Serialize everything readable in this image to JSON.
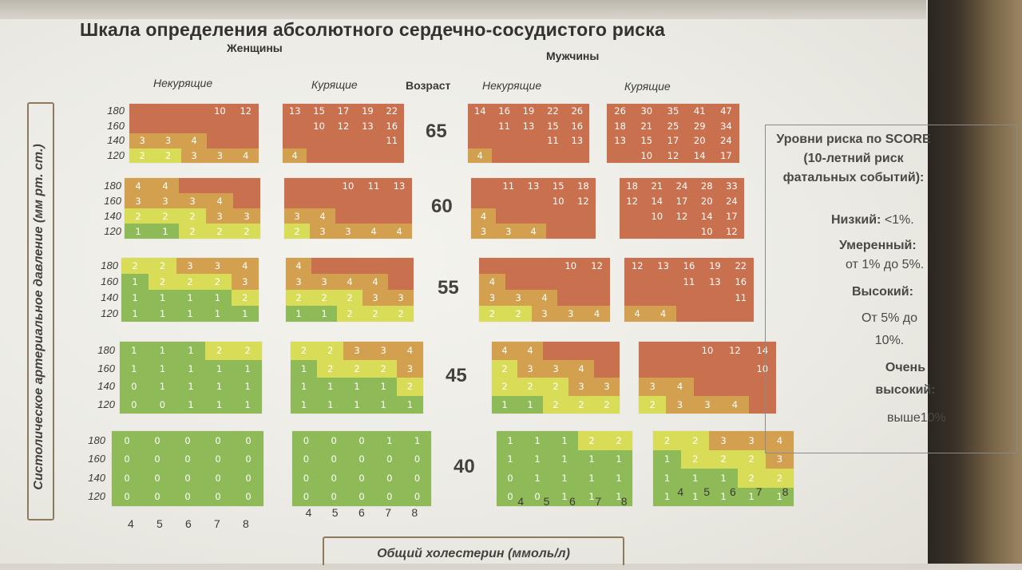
{
  "title": "Шкала определения абсолютного сердечно-сосудистого риска",
  "women_label": "Женщины",
  "men_label": "Мужчины",
  "group_labels": {
    "women_nonsmoking": "Некурящие",
    "women_smoking": "Курящие",
    "age": "Возраст",
    "men_nonsmoking": "Некурящие",
    "men_smoking": "Курящие"
  },
  "y_axis_label": "Систолическое артериальное давление (мм рт. ст.)",
  "x_axis_label": "Общий холестерин (ммоль/л)",
  "bp_levels": [
    "180",
    "160",
    "140",
    "120"
  ],
  "cholesterol_levels": [
    "4",
    "5",
    "6",
    "7",
    "8"
  ],
  "ages": [
    "65",
    "60",
    "55",
    "45",
    "40"
  ],
  "risk_colors": {
    "low": "#8fba58",
    "moderate": "#d8dc57",
    "high": "#d2a04e",
    "very_high": "#c9704e"
  },
  "tables": {
    "women_nonsmoking": [
      [
        [
          "",
          "",
          "",
          "10",
          "12"
        ],
        [
          "",
          "",
          "",
          "",
          ""
        ],
        [
          "3",
          "3",
          "4",
          "",
          ""
        ],
        [
          "2",
          "2",
          "3",
          "3",
          "4"
        ]
      ],
      [
        [
          "4",
          "4",
          "",
          "",
          ""
        ],
        [
          "3",
          "3",
          "3",
          "4",
          ""
        ],
        [
          "2",
          "2",
          "2",
          "3",
          "3"
        ],
        [
          "1",
          "1",
          "2",
          "2",
          "2"
        ]
      ],
      [
        [
          "2",
          "2",
          "3",
          "3",
          "4"
        ],
        [
          "1",
          "2",
          "2",
          "2",
          "3"
        ],
        [
          "1",
          "1",
          "1",
          "1",
          "2"
        ],
        [
          "1",
          "1",
          "1",
          "1",
          "1"
        ]
      ],
      [
        [
          "1",
          "1",
          "1",
          "2",
          "2"
        ],
        [
          "1",
          "1",
          "1",
          "1",
          "1"
        ],
        [
          "0",
          "1",
          "1",
          "1",
          "1"
        ],
        [
          "0",
          "0",
          "1",
          "1",
          "1"
        ]
      ],
      [
        [
          "0",
          "0",
          "0",
          "0",
          "0"
        ],
        [
          "0",
          "0",
          "0",
          "0",
          "0"
        ],
        [
          "0",
          "0",
          "0",
          "0",
          "0"
        ],
        [
          "0",
          "0",
          "0",
          "0",
          "0"
        ]
      ]
    ],
    "women_smoking": [
      [
        [
          "13",
          "15",
          "17",
          "19",
          "22"
        ],
        [
          "",
          "10",
          "12",
          "13",
          "16"
        ],
        [
          "",
          "",
          "",
          "",
          "11"
        ],
        [
          "4",
          "",
          "",
          "",
          ""
        ]
      ],
      [
        [
          "",
          "",
          "10",
          "11",
          "13"
        ],
        [
          "",
          "",
          "",
          "",
          ""
        ],
        [
          "3",
          "4",
          "",
          "",
          ""
        ],
        [
          "2",
          "3",
          "3",
          "4",
          "4"
        ]
      ],
      [
        [
          "4",
          "",
          "",
          "",
          ""
        ],
        [
          "3",
          "3",
          "4",
          "4",
          ""
        ],
        [
          "2",
          "2",
          "2",
          "3",
          "3"
        ],
        [
          "1",
          "1",
          "2",
          "2",
          "2"
        ]
      ],
      [
        [
          "2",
          "2",
          "3",
          "3",
          "4"
        ],
        [
          "1",
          "2",
          "2",
          "2",
          "3"
        ],
        [
          "1",
          "1",
          "1",
          "1",
          "2"
        ],
        [
          "1",
          "1",
          "1",
          "1",
          "1"
        ]
      ],
      [
        [
          "0",
          "0",
          "0",
          "1",
          "1"
        ],
        [
          "0",
          "0",
          "0",
          "0",
          "0"
        ],
        [
          "0",
          "0",
          "0",
          "0",
          "0"
        ],
        [
          "0",
          "0",
          "0",
          "0",
          "0"
        ]
      ]
    ],
    "men_nonsmoking": [
      [
        [
          "14",
          "16",
          "19",
          "22",
          "26"
        ],
        [
          "",
          "11",
          "13",
          "15",
          "16"
        ],
        [
          "",
          "",
          "",
          "11",
          "13"
        ],
        [
          "4",
          "",
          "",
          "",
          ""
        ]
      ],
      [
        [
          "",
          "11",
          "13",
          "15",
          "18"
        ],
        [
          "",
          "",
          "",
          "10",
          "12"
        ],
        [
          "4",
          "",
          "",
          "",
          ""
        ],
        [
          "3",
          "3",
          "4",
          "",
          ""
        ]
      ],
      [
        [
          "",
          "",
          "",
          "10",
          "12"
        ],
        [
          "4",
          "",
          "",
          "",
          ""
        ],
        [
          "3",
          "3",
          "4",
          "",
          ""
        ],
        [
          "2",
          "2",
          "3",
          "3",
          "4"
        ]
      ],
      [
        [
          "4",
          "4",
          "",
          "",
          ""
        ],
        [
          "2",
          "3",
          "3",
          "4",
          ""
        ],
        [
          "2",
          "2",
          "2",
          "3",
          "3"
        ],
        [
          "1",
          "1",
          "2",
          "2",
          "2"
        ]
      ],
      [
        [
          "1",
          "1",
          "1",
          "2",
          "2"
        ],
        [
          "1",
          "1",
          "1",
          "1",
          "1"
        ],
        [
          "0",
          "1",
          "1",
          "1",
          "1"
        ],
        [
          "0",
          "0",
          "1",
          "1",
          "1"
        ]
      ]
    ],
    "men_smoking": [
      [
        [
          "26",
          "30",
          "35",
          "41",
          "47"
        ],
        [
          "18",
          "21",
          "25",
          "29",
          "34"
        ],
        [
          "13",
          "15",
          "17",
          "20",
          "24"
        ],
        [
          "",
          "10",
          "12",
          "14",
          "17"
        ]
      ],
      [
        [
          "18",
          "21",
          "24",
          "28",
          "33"
        ],
        [
          "12",
          "14",
          "17",
          "20",
          "24"
        ],
        [
          "",
          "10",
          "12",
          "14",
          "17"
        ],
        [
          "",
          "",
          "",
          "10",
          "12"
        ]
      ],
      [
        [
          "12",
          "13",
          "16",
          "19",
          "22"
        ],
        [
          "",
          "",
          "11",
          "13",
          "16"
        ],
        [
          "",
          "",
          "",
          "",
          "11"
        ],
        [
          "4",
          "4",
          "",
          "",
          ""
        ]
      ],
      [
        [
          "",
          "",
          "10",
          "12",
          "14"
        ],
        [
          "",
          "",
          "",
          "",
          "10"
        ],
        [
          "3",
          "4",
          "",
          "",
          ""
        ],
        [
          "2",
          "3",
          "3",
          "4",
          ""
        ]
      ],
      [
        [
          "2",
          "2",
          "3",
          "3",
          "4"
        ],
        [
          "1",
          "2",
          "2",
          "2",
          "3"
        ],
        [
          "1",
          "1",
          "1",
          "2",
          "2"
        ],
        [
          "1",
          "1",
          "1",
          "1",
          "1"
        ]
      ]
    ]
  },
  "legend": {
    "heading": "Уровни риска по SCORE (10-летний риск фатальных событий):",
    "low_label": "Низкий:",
    "low_value": "<1%.",
    "moderate_label": "Умеренный:",
    "moderate_value": "от 1% до 5%.",
    "high_label": "Высокий:",
    "high_value": "От 5% до 10%.",
    "very_high_label": "Очень высокий:",
    "very_high_value": "выше10%"
  }
}
